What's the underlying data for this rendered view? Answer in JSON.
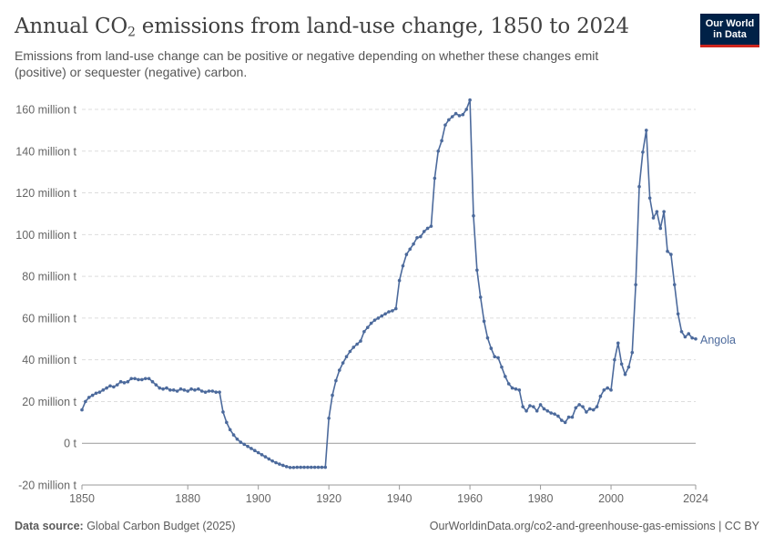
{
  "header": {
    "title_pre": "Annual CO",
    "title_sub": "2",
    "title_post": " emissions from land-use change, 1850 to 2024",
    "subtitle": "Emissions from land-use change can be positive or negative depending on whether these changes emit (positive) or sequester (negative) carbon."
  },
  "logo": {
    "line1": "Our World",
    "line2": "in Data"
  },
  "footer": {
    "source_label": "Data source:",
    "source_text": " Global Carbon Budget (2025)",
    "url_license": "OurWorldinData.org/co2-and-greenhouse-gas-emissions | CC BY"
  },
  "colors": {
    "series": "#4c6a9c",
    "grid": "#dddddd",
    "zero_line": "#999999",
    "logo_bg": "#002147",
    "logo_accent": "#ce261e"
  },
  "chart_data": {
    "type": "line",
    "title": "Annual CO₂ emissions from land-use change, 1850 to 2024",
    "xlim": [
      1850,
      2024
    ],
    "ylim": [
      -20000000,
      160000000
    ],
    "x_ticks": [
      1850,
      1880,
      1900,
      1920,
      1940,
      1960,
      1980,
      2000,
      2024
    ],
    "y_ticks": [
      {
        "value": -20000000,
        "label": "-20 million t"
      },
      {
        "value": 0,
        "label": "0 t"
      },
      {
        "value": 20000000,
        "label": "20 million t"
      },
      {
        "value": 40000000,
        "label": "40 million t"
      },
      {
        "value": 60000000,
        "label": "60 million t"
      },
      {
        "value": 80000000,
        "label": "80 million t"
      },
      {
        "value": 100000000,
        "label": "100 million t"
      },
      {
        "value": 120000000,
        "label": "120 million t"
      },
      {
        "value": 140000000,
        "label": "140 million t"
      },
      {
        "value": 160000000,
        "label": "160 million t"
      }
    ],
    "grid": true,
    "series": [
      {
        "name": "Angola",
        "x": [
          1850,
          1851,
          1852,
          1853,
          1854,
          1855,
          1856,
          1857,
          1858,
          1859,
          1860,
          1861,
          1862,
          1863,
          1864,
          1865,
          1866,
          1867,
          1868,
          1869,
          1870,
          1871,
          1872,
          1873,
          1874,
          1875,
          1876,
          1877,
          1878,
          1879,
          1880,
          1881,
          1882,
          1883,
          1884,
          1885,
          1886,
          1887,
          1888,
          1889,
          1890,
          1891,
          1892,
          1893,
          1894,
          1895,
          1896,
          1897,
          1898,
          1899,
          1900,
          1901,
          1902,
          1903,
          1904,
          1905,
          1906,
          1907,
          1908,
          1909,
          1910,
          1911,
          1912,
          1913,
          1914,
          1915,
          1916,
          1917,
          1918,
          1919,
          1920,
          1921,
          1922,
          1923,
          1924,
          1925,
          1926,
          1927,
          1928,
          1929,
          1930,
          1931,
          1932,
          1933,
          1934,
          1935,
          1936,
          1937,
          1938,
          1939,
          1940,
          1941,
          1942,
          1943,
          1944,
          1945,
          1946,
          1947,
          1948,
          1949,
          1950,
          1951,
          1952,
          1953,
          1954,
          1955,
          1956,
          1957,
          1958,
          1959,
          1960,
          1961,
          1962,
          1963,
          1964,
          1965,
          1966,
          1967,
          1968,
          1969,
          1970,
          1971,
          1972,
          1973,
          1974,
          1975,
          1976,
          1977,
          1978,
          1979,
          1980,
          1981,
          1982,
          1983,
          1984,
          1985,
          1986,
          1987,
          1988,
          1989,
          1990,
          1991,
          1992,
          1993,
          1994,
          1995,
          1996,
          1997,
          1998,
          1999,
          2000,
          2001,
          2002,
          2003,
          2004,
          2005,
          2006,
          2007,
          2008,
          2009,
          2010,
          2011,
          2012,
          2013,
          2014,
          2015,
          2016,
          2017,
          2018,
          2019,
          2020,
          2021,
          2022,
          2023,
          2024
        ],
        "y": [
          16,
          20,
          22,
          23,
          24,
          24.5,
          25.5,
          26.5,
          27.5,
          27,
          28,
          29.5,
          29,
          29.5,
          31,
          31,
          30.5,
          30.5,
          31,
          31,
          29.5,
          28,
          26.5,
          26,
          26.5,
          25.5,
          25.5,
          25,
          26,
          25.5,
          25,
          26,
          25.5,
          26,
          25,
          24.5,
          25,
          25,
          24.5,
          24.5,
          15,
          10,
          6.5,
          4,
          2,
          0.5,
          -0.5,
          -1.5,
          -2.5,
          -3.5,
          -4.5,
          -5.5,
          -6.5,
          -7.5,
          -8.5,
          -9.3,
          -10,
          -10.6,
          -11.2,
          -11.6,
          -11.6,
          -11.5,
          -11.5,
          -11.5,
          -11.5,
          -11.5,
          -11.5,
          -11.5,
          -11.5,
          -11.5,
          12,
          23,
          30,
          35,
          38.5,
          41.5,
          44,
          46,
          47.5,
          49,
          53.5,
          55.5,
          57.5,
          59,
          60,
          61,
          62,
          63,
          63.5,
          64.5,
          78,
          85,
          90.5,
          93,
          95.5,
          98.5,
          99,
          101.5,
          103,
          104,
          127,
          140,
          145,
          152.5,
          155,
          156.5,
          158,
          157,
          157.5,
          160,
          164.5,
          109,
          83,
          70,
          58.5,
          50.5,
          45.5,
          41.5,
          41,
          36.5,
          32,
          28.5,
          26.5,
          26,
          25.5,
          17.5,
          15.5,
          18,
          17.5,
          15.5,
          18.5,
          16.5,
          15.5,
          14.5,
          14,
          13,
          11,
          10,
          12.5,
          12.5,
          17,
          18.5,
          17.5,
          15,
          16.5,
          16,
          17.5,
          22.5,
          25.5,
          26.5,
          25.5,
          40,
          48,
          38,
          33,
          36.5,
          43.5,
          76,
          123,
          139.5,
          150,
          117.5,
          108,
          111,
          103,
          111,
          92,
          90.5,
          76,
          62,
          53.5,
          51,
          52.5,
          50.5,
          50
        ]
      }
    ],
    "y_unit_multiplier": 1000000,
    "series_label_position": "right"
  }
}
